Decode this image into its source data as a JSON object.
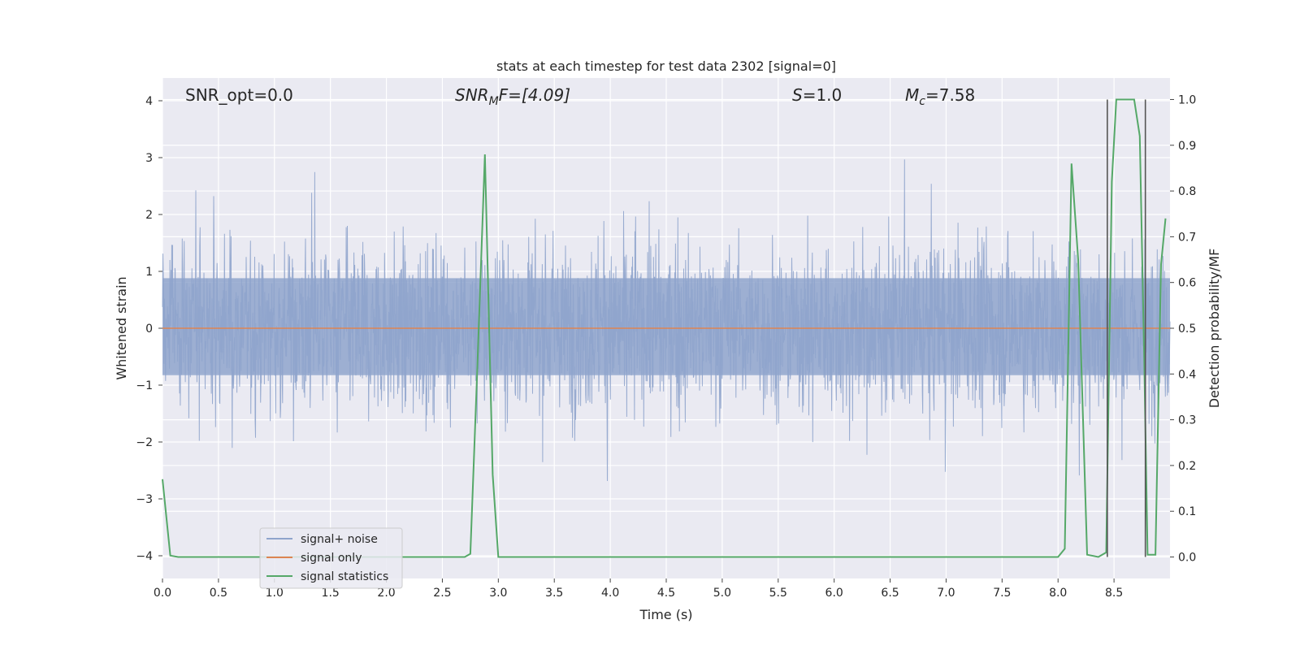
{
  "chart_data": {
    "type": "line",
    "title": "stats at each timestep for test data 2302 [signal=0]",
    "xlabel": "Time (s)",
    "ylabel": "Whitened strain",
    "y2label": "Detection probability/MF",
    "xlim": [
      0.0,
      9.0
    ],
    "ylim": [
      -4.4,
      4.4
    ],
    "y2lim": [
      -0.047,
      1.047
    ],
    "x_ticks": [
      "0.0",
      "0.5",
      "1.0",
      "1.5",
      "2.0",
      "2.5",
      "3.0",
      "3.5",
      "4.0",
      "4.5",
      "5.0",
      "5.5",
      "6.0",
      "6.5",
      "7.0",
      "7.5",
      "8.0",
      "8.5"
    ],
    "y_ticks": [
      "4",
      "3",
      "2",
      "1",
      "0",
      "−1",
      "−2",
      "−3",
      "−4"
    ],
    "y2_ticks": [
      "1.0",
      "0.9",
      "0.8",
      "0.7",
      "0.6",
      "0.5",
      "0.4",
      "0.3",
      "0.2",
      "0.1",
      "0.0"
    ],
    "grid": true,
    "legend_position": "lower-left",
    "annotations": {
      "snr_opt": "SNR_opt=0.0",
      "snr_mf": "SNR",
      "snr_mf_sub": "M",
      "snr_mf_rest": "F=[4.09]",
      "s_label": "S",
      "s_value": "=1.0",
      "mc_label": "M",
      "mc_sub": "c",
      "mc_value": "=7.58"
    },
    "series": [
      {
        "name": "signal+ noise",
        "color": "#8fa4cc",
        "envelope_note": "dense noise approximately within [-3.6, 4.0]",
        "band": [
          -1.5,
          1.6
        ]
      },
      {
        "name": "signal only",
        "color": "#dd8452",
        "values_constant": 0.0
      },
      {
        "name": "signal statistics",
        "color": "#55a868",
        "axis": "right",
        "x": [
          0.0,
          0.07,
          0.14,
          2.7,
          2.75,
          2.81,
          2.88,
          2.95,
          3.0,
          8.0,
          8.06,
          8.12,
          8.18,
          8.26,
          8.36,
          8.43,
          8.48,
          8.52,
          8.6,
          8.68,
          8.73,
          8.77,
          8.8,
          8.87,
          8.92,
          8.96
        ],
        "values": [
          0.17,
          0.003,
          0.0,
          0.0,
          0.007,
          0.4,
          0.88,
          0.18,
          0.0,
          0.0,
          0.018,
          0.86,
          0.65,
          0.005,
          0.0,
          0.01,
          0.82,
          1.0,
          1.0,
          1.0,
          0.92,
          0.43,
          0.005,
          0.005,
          0.64,
          0.74
        ]
      }
    ],
    "vertical_markers": [
      8.44,
      8.78
    ]
  },
  "colors": {
    "plot_bg": "#eaeaf2",
    "grid": "#ffffff",
    "noise": "#8fa4cc",
    "signal": "#dd8452",
    "stats": "#55a868",
    "marker": "#555555"
  }
}
